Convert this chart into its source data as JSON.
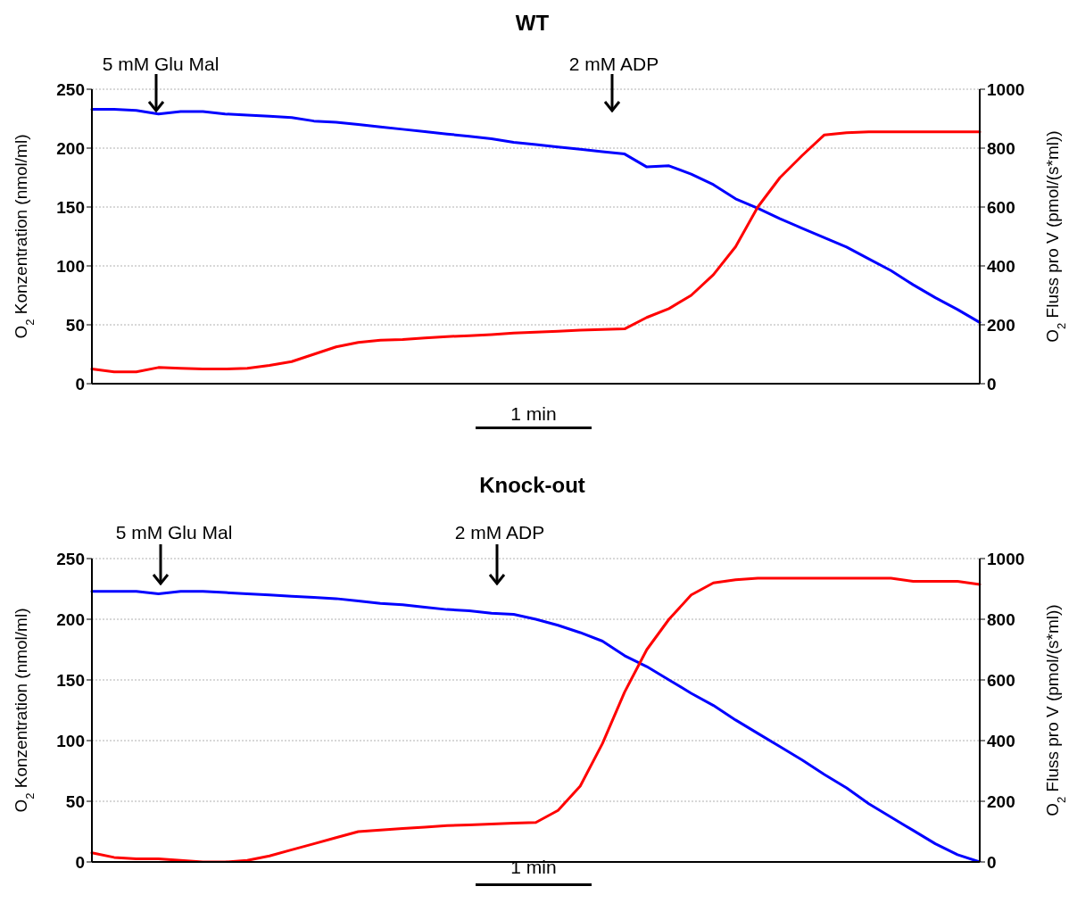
{
  "chart_data": [
    {
      "type": "line",
      "title": "WT",
      "ylabel": "O$_{2}$ Konzentration (nmol/ml)",
      "y2label": "O$_{2}$ Fluss pro V  (pmol/(s*ml))",
      "categories": [
        null,
        null,
        null,
        null,
        null,
        null,
        null,
        null,
        null,
        null,
        null,
        null,
        null,
        null,
        null,
        null,
        null,
        null,
        null,
        null,
        null,
        null,
        null,
        null,
        null,
        null,
        null,
        null,
        null,
        null,
        null,
        null,
        null,
        null,
        null,
        null,
        null,
        null,
        null,
        null,
        null
      ],
      "series": [
        {
          "color": "#0000ff",
          "values": [
            233,
            233,
            232,
            229,
            231,
            231,
            229,
            228,
            227,
            226,
            223,
            222,
            220,
            218,
            216,
            214,
            212,
            210,
            208,
            205,
            203,
            201,
            199,
            197,
            195,
            184,
            185,
            178,
            169,
            157,
            149,
            140,
            132,
            124,
            116,
            106,
            96,
            84,
            73,
            63,
            52
          ]
        },
        {
          "color": "#ff0000",
          "axis": "y2",
          "values": [
            50,
            40,
            40,
            55,
            52,
            50,
            50,
            52,
            62,
            75,
            100,
            125,
            140,
            148,
            150,
            155,
            160,
            163,
            167,
            172,
            175,
            178,
            182,
            184,
            186,
            225,
            255,
            300,
            370,
            465,
            600,
            700,
            775,
            845,
            852,
            855,
            855,
            855,
            855,
            855,
            855
          ]
        }
      ],
      "ylim": [
        0,
        250
      ],
      "yticks": [
        0,
        50,
        100,
        150,
        200,
        250
      ],
      "y2lim": [
        0,
        1000
      ],
      "y2ticks": [
        0,
        200,
        400,
        600,
        800,
        1000
      ],
      "grid": "y",
      "tick_labels": "y",
      "marker": "none",
      "line_style": "solid",
      "annotations": [
        "5 mM Glu Mal",
        "2 mM ADP",
        "1 min"
      ]
    },
    {
      "type": "line",
      "title": "Knock-out",
      "ylabel": "O$_{2}$ Konzentration (nmol/ml)",
      "y2label": "O$_{2}$ Fluss pro V  (pmol/(s*ml))",
      "categories": [
        null,
        null,
        null,
        null,
        null,
        null,
        null,
        null,
        null,
        null,
        null,
        null,
        null,
        null,
        null,
        null,
        null,
        null,
        null,
        null,
        null,
        null,
        null,
        null,
        null,
        null,
        null,
        null,
        null,
        null,
        null,
        null,
        null,
        null,
        null,
        null,
        null,
        null,
        null,
        null,
        null
      ],
      "series": [
        {
          "color": "#0000ff",
          "values": [
            223,
            223,
            223,
            221,
            223,
            223,
            222,
            221,
            220,
            219,
            218,
            217,
            215,
            213,
            212,
            210,
            208,
            207,
            205,
            204,
            200,
            195,
            189,
            182,
            170,
            161,
            150,
            139,
            129,
            117,
            106,
            95,
            84,
            72,
            61,
            48,
            37,
            26,
            15,
            6,
            0
          ]
        },
        {
          "color": "#ff0000",
          "axis": "y2",
          "values": [
            30,
            15,
            10,
            10,
            5,
            0,
            0,
            5,
            20,
            40,
            60,
            80,
            100,
            105,
            110,
            115,
            120,
            122,
            125,
            128,
            130,
            170,
            250,
            390,
            560,
            700,
            800,
            880,
            920,
            930,
            935,
            935,
            935,
            935,
            935,
            935,
            935,
            925,
            925,
            925,
            915
          ]
        }
      ],
      "ylim": [
        0,
        250
      ],
      "yticks": [
        0,
        50,
        100,
        150,
        200,
        250
      ],
      "y2lim": [
        0,
        1000
      ],
      "y2ticks": [
        0,
        200,
        400,
        600,
        800,
        1000
      ],
      "grid": "y",
      "tick_labels": "y",
      "marker": "none",
      "line_style": "solid",
      "annotations": [
        "5 mM Glu Mal",
        "2 mM ADP",
        "1 min"
      ]
    }
  ]
}
